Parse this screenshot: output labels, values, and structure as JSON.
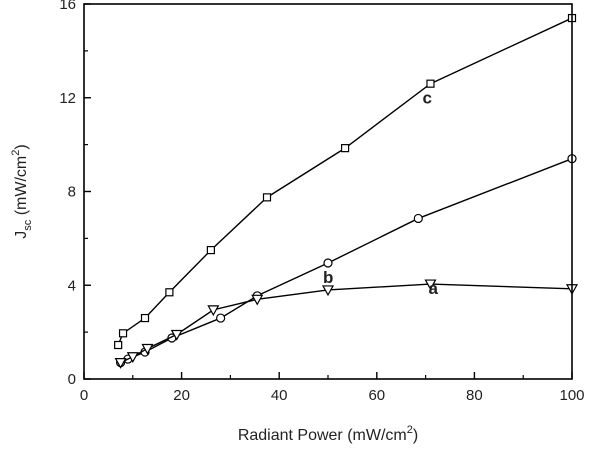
{
  "chart_data": {
    "type": "line",
    "xlabel": {
      "main": "Radiant Power (mW/cm",
      "sup": "2",
      "close": ")"
    },
    "ylabel": {
      "main": "J",
      "sub": "sc",
      "unit": " (mW/cm",
      "sup": "2",
      "close": ")"
    },
    "xlim": [
      0,
      100
    ],
    "ylim": [
      0,
      16
    ],
    "xticks": [
      0,
      20,
      40,
      60,
      80,
      100
    ],
    "yticks": [
      0,
      4,
      8,
      12,
      16
    ],
    "grid": false,
    "series": [
      {
        "label": "c",
        "marker": "square",
        "x": [
          7,
          8,
          12.5,
          17.5,
          26,
          37.5,
          53.5,
          71,
          100
        ],
        "y": [
          1.45,
          1.95,
          2.6,
          3.7,
          5.5,
          7.75,
          9.85,
          12.6,
          15.4
        ]
      },
      {
        "label": "b",
        "marker": "circle",
        "x": [
          7.5,
          9,
          12.5,
          18,
          28,
          35.5,
          50,
          68.5,
          100
        ],
        "y": [
          0.7,
          0.85,
          1.15,
          1.75,
          2.6,
          3.55,
          4.95,
          6.85,
          9.4
        ]
      },
      {
        "label": "a",
        "marker": "triangle-down",
        "x": [
          7.5,
          10,
          13,
          19,
          26.5,
          35.5,
          50,
          71,
          100
        ],
        "y": [
          0.7,
          0.95,
          1.3,
          1.9,
          2.95,
          3.4,
          3.8,
          4.05,
          3.85
        ]
      }
    ]
  }
}
